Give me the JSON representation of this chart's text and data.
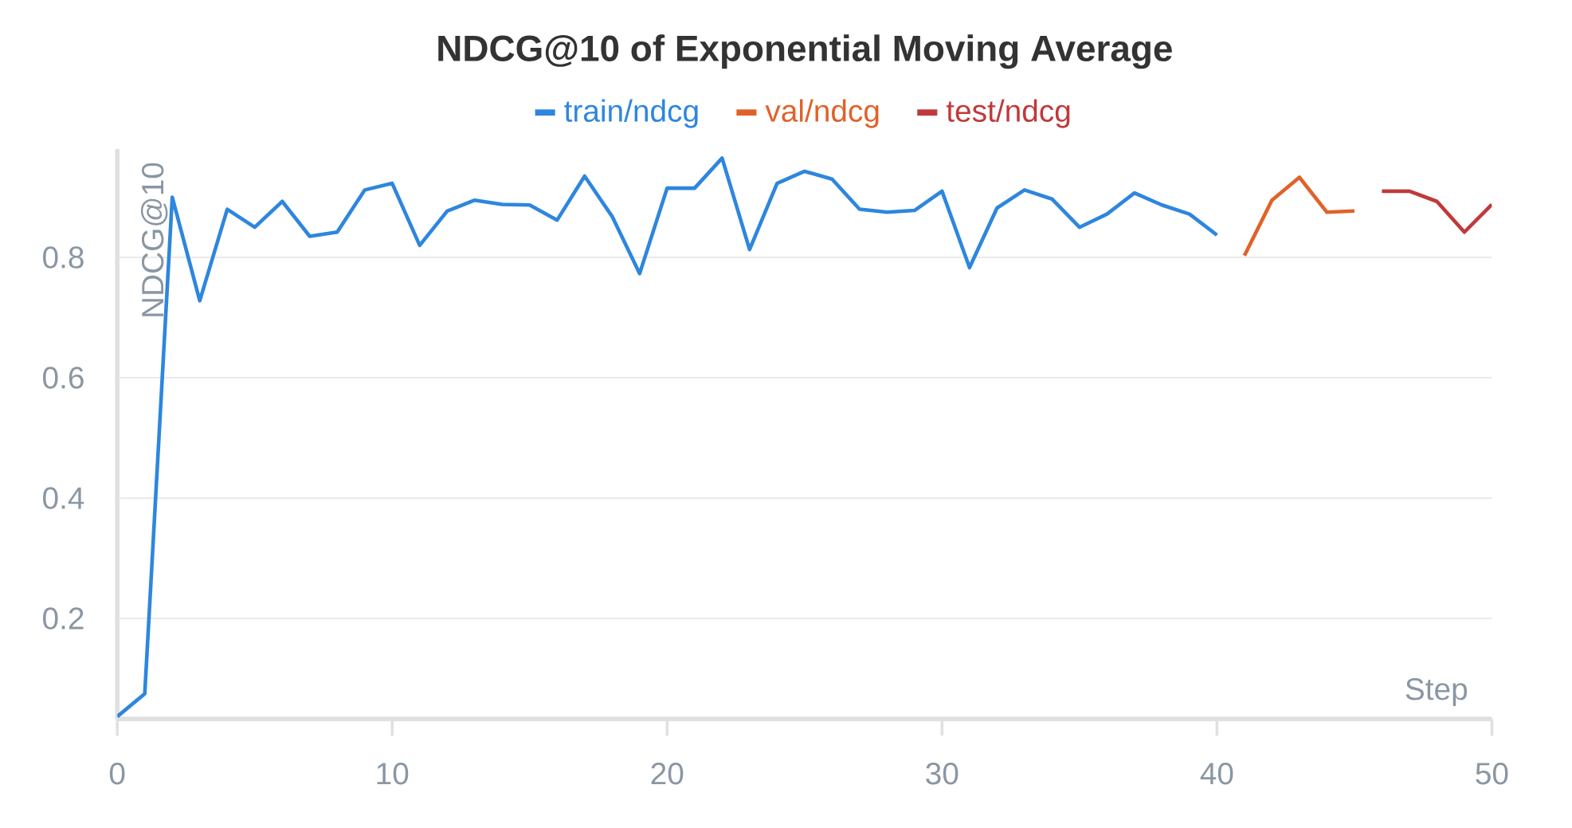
{
  "chart_data": {
    "type": "line",
    "title": "NDCG@10 of Exponential Moving Average",
    "xlabel": "Step",
    "ylabel": "NDCG@10",
    "xlim": [
      0,
      50
    ],
    "ylim": [
      0.033,
      0.98
    ],
    "xticks": [
      0,
      10,
      20,
      30,
      40,
      50
    ],
    "yticks": [
      0.2,
      0.4,
      0.6,
      0.8
    ],
    "grid": "y",
    "legend": "top",
    "marker": "none",
    "line_style": "solid",
    "series": [
      {
        "name": "train/ndcg",
        "color": "#2e86de",
        "x": [
          0,
          1,
          2,
          3,
          4,
          5,
          6,
          7,
          8,
          9,
          10,
          11,
          12,
          13,
          14,
          15,
          16,
          17,
          18,
          19,
          20,
          21,
          22,
          23,
          24,
          25,
          26,
          27,
          28,
          29,
          30,
          31,
          32,
          33,
          34,
          35,
          36,
          37,
          38,
          39,
          40
        ],
        "values": [
          0.037,
          0.075,
          0.9,
          0.728,
          0.88,
          0.85,
          0.893,
          0.835,
          0.842,
          0.912,
          0.923,
          0.82,
          0.877,
          0.895,
          0.888,
          0.887,
          0.862,
          0.935,
          0.868,
          0.773,
          0.915,
          0.915,
          0.965,
          0.813,
          0.923,
          0.943,
          0.93,
          0.88,
          0.875,
          0.878,
          0.91,
          0.783,
          0.882,
          0.912,
          0.897,
          0.85,
          0.872,
          0.907,
          0.887,
          0.872,
          0.837
        ]
      },
      {
        "name": "val/ndcg",
        "color": "#e0622a",
        "x": [
          41,
          42,
          43,
          44,
          45
        ],
        "values": [
          0.803,
          0.895,
          0.933,
          0.875,
          0.877
        ]
      },
      {
        "name": "test/ndcg",
        "color": "#c0393b",
        "x": [
          46,
          47,
          48,
          49,
          50
        ],
        "values": [
          0.91,
          0.91,
          0.893,
          0.842,
          0.888
        ]
      }
    ]
  }
}
